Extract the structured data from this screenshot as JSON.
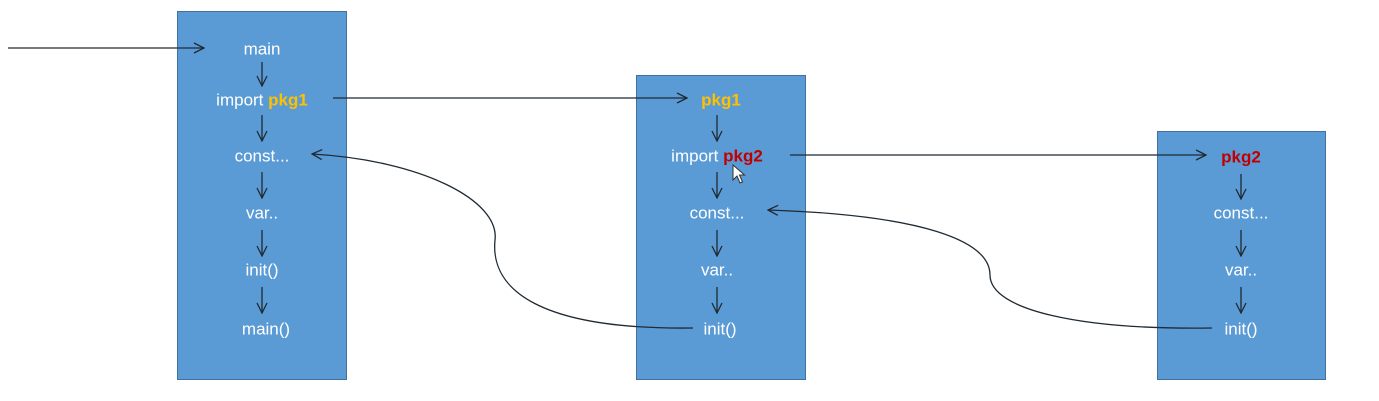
{
  "main_box": {
    "main": "main",
    "import_prefix": "import",
    "import_pkg": "pkg1",
    "const": "const...",
    "var": "var..",
    "init": "init()",
    "main_call": "main()"
  },
  "pkg1_box": {
    "title": "pkg1",
    "import_prefix": "import",
    "import_pkg": "pkg2",
    "const": "const...",
    "var": "var..",
    "init": "init()"
  },
  "pkg2_box": {
    "title": "pkg2",
    "const": "const...",
    "var": "var..",
    "init": "init()"
  },
  "colors": {
    "box_fill": "#5b9bd5",
    "pkg1_text": "#ffc000",
    "pkg2_text": "#c00000"
  }
}
